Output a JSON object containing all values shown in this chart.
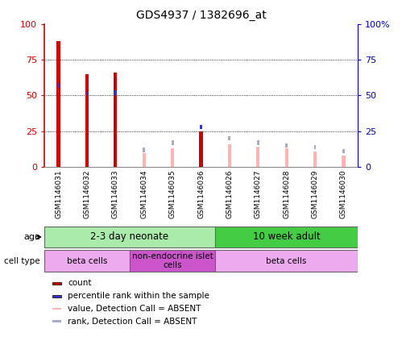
{
  "title": "GDS4937 / 1382696_at",
  "samples": [
    "GSM1146031",
    "GSM1146032",
    "GSM1146033",
    "GSM1146034",
    "GSM1146035",
    "GSM1146036",
    "GSM1146026",
    "GSM1146027",
    "GSM1146028",
    "GSM1146029",
    "GSM1146030"
  ],
  "count_values": [
    88,
    65,
    66,
    0,
    0,
    25,
    0,
    0,
    0,
    0,
    0
  ],
  "rank_values": [
    57,
    51,
    52,
    0,
    0,
    28,
    0,
    0,
    0,
    0,
    0
  ],
  "absent_value": [
    0,
    0,
    0,
    10,
    13,
    0,
    16,
    14,
    13,
    11,
    8
  ],
  "absent_rank": [
    0,
    0,
    0,
    12,
    17,
    0,
    20,
    17,
    15,
    14,
    11
  ],
  "ylim": [
    0,
    100
  ],
  "count_color": "#cc0000",
  "rank_color": "#3333cc",
  "absent_val_color": "#ffb3b3",
  "absent_rank_color": "#aaaacc",
  "age_groups": [
    {
      "label": "2-3 day neonate",
      "start": 0,
      "end": 6,
      "color": "#aaeaaa"
    },
    {
      "label": "10 week adult",
      "start": 6,
      "end": 11,
      "color": "#44cc44"
    }
  ],
  "cell_groups": [
    {
      "label": "beta cells",
      "start": 0,
      "end": 3,
      "color": "#eeaaee"
    },
    {
      "label": "non-endocrine islet\ncells",
      "start": 3,
      "end": 6,
      "color": "#cc55cc"
    },
    {
      "label": "beta cells",
      "start": 6,
      "end": 11,
      "color": "#eeaaee"
    }
  ],
  "xlabel_bg_color": "#cccccc",
  "plot_bg_color": "#ffffff",
  "left_axis_color": "#cc0000",
  "right_axis_color": "#0000cc",
  "legend_items": [
    {
      "color": "#cc0000",
      "label": "count"
    },
    {
      "color": "#3333cc",
      "label": "percentile rank within the sample"
    },
    {
      "color": "#ffb3b3",
      "label": "value, Detection Call = ABSENT"
    },
    {
      "color": "#aaaacc",
      "label": "rank, Detection Call = ABSENT"
    }
  ]
}
